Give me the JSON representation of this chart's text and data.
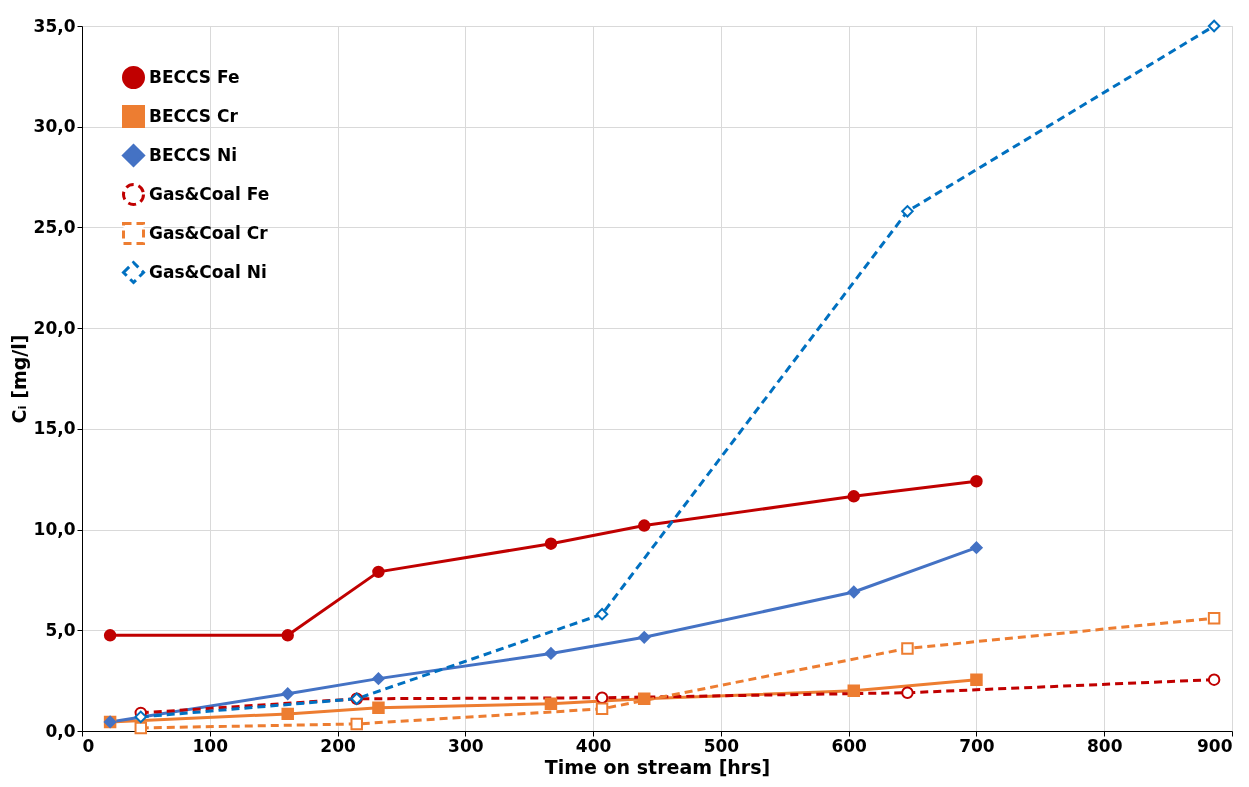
{
  "chart_data": {
    "type": "line",
    "xlabel": "Time on stream [hrs]",
    "ylabel": "Cᵢ [mg/l]",
    "xlim": [
      0,
      900
    ],
    "xticks": [
      0,
      100,
      200,
      300,
      400,
      500,
      600,
      700,
      800,
      900
    ],
    "ylim": [
      0,
      35
    ],
    "yticks": [
      {
        "value": 0,
        "label": "0,0"
      },
      {
        "value": 5,
        "label": "5,0"
      },
      {
        "value": 10,
        "label": "10,0"
      },
      {
        "value": 15,
        "label": "15,0"
      },
      {
        "value": 20,
        "label": "20,0"
      },
      {
        "value": 25,
        "label": "25,0"
      },
      {
        "value": 30,
        "label": "30,0"
      },
      {
        "value": 35,
        "label": "35,0"
      }
    ],
    "grid": true,
    "legend": "top left",
    "series": [
      {
        "name": "BECCS Fe",
        "color": "#c00000",
        "marker": "circle",
        "line_style": "solid",
        "x": [
          22,
          161,
          232,
          367,
          440,
          604,
          700
        ],
        "values": [
          4.75,
          4.75,
          7.9,
          9.3,
          10.2,
          11.65,
          12.4
        ]
      },
      {
        "name": "BECCS Cr",
        "color": "#ed7d31",
        "marker": "square",
        "line_style": "solid",
        "x": [
          22,
          161,
          232,
          367,
          440,
          604,
          700
        ],
        "values": [
          0.45,
          0.85,
          1.15,
          1.35,
          1.6,
          2.0,
          2.55
        ]
      },
      {
        "name": "BECCS Ni",
        "color": "#4472c4",
        "marker": "diamond",
        "line_style": "solid",
        "x": [
          22,
          161,
          232,
          367,
          440,
          604,
          700
        ],
        "values": [
          0.45,
          1.85,
          2.6,
          3.85,
          4.65,
          6.9,
          9.1
        ]
      },
      {
        "name": "Gas&Coal Fe",
        "color": "#c00000",
        "marker": "circle",
        "line_style": "dashed",
        "x": [
          46,
          215,
          407,
          646,
          886
        ],
        "values": [
          0.9,
          1.6,
          1.65,
          1.9,
          2.55
        ]
      },
      {
        "name": "Gas&Coal Cr",
        "color": "#ed7d31",
        "marker": "square",
        "line_style": "dashed",
        "x": [
          46,
          215,
          407,
          646,
          886
        ],
        "values": [
          0.15,
          0.35,
          1.1,
          4.1,
          5.6
        ]
      },
      {
        "name": "Gas&Coal Ni",
        "color": "#0070c0",
        "marker": "diamond",
        "line_style": "dashed",
        "x": [
          46,
          215,
          407,
          646,
          886
        ],
        "values": [
          0.7,
          1.6,
          5.8,
          25.8,
          35.0
        ]
      }
    ]
  }
}
